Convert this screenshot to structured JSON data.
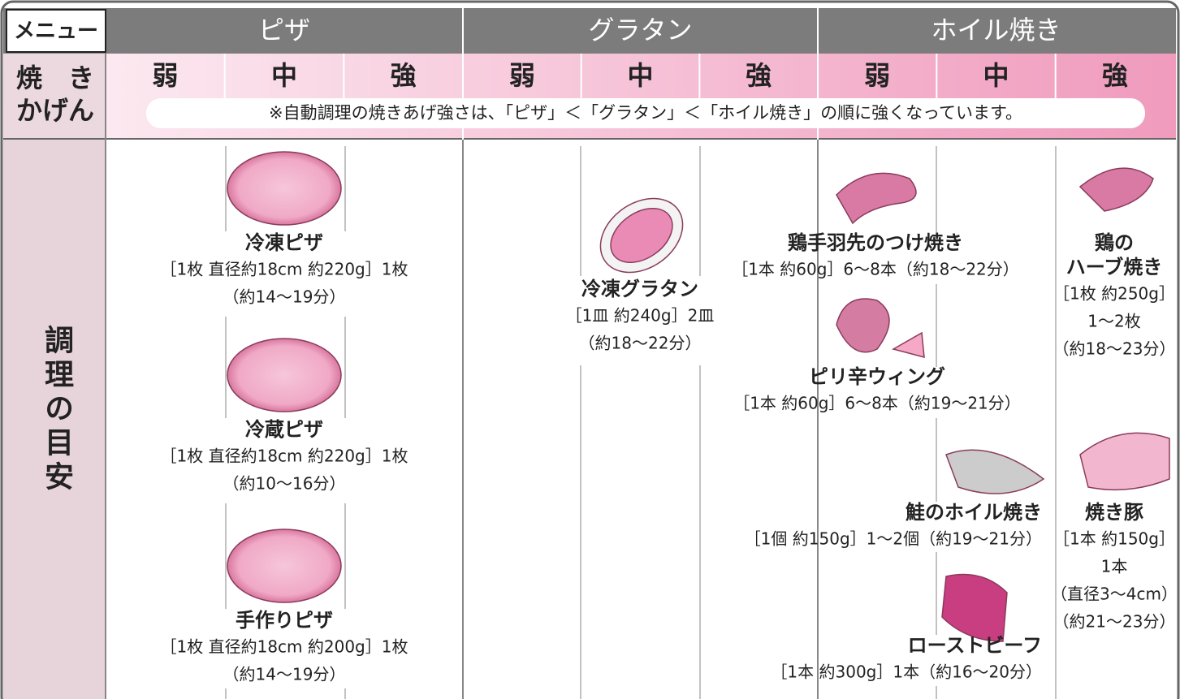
{
  "header": {
    "menu_label": "メニュー",
    "groups": [
      {
        "name": "ピザ",
        "levels": [
          "弱",
          "中",
          "強"
        ]
      },
      {
        "name": "グラタン",
        "levels": [
          "弱",
          "中",
          "強"
        ]
      },
      {
        "name": "ホイル焼き",
        "levels": [
          "弱",
          "中",
          "強"
        ]
      }
    ]
  },
  "heat_row": {
    "label_lines": [
      "焼　き",
      "かげん"
    ],
    "note": "※自動調理の焼きあげ強さは、「ピザ」＜「グラタン」＜「ホイル焼き」の順に強くなっています。"
  },
  "guide": {
    "label": "調理の目安",
    "items": [
      {
        "name_lines": [
          "冷凍ピザ"
        ],
        "detail_lines": [
          "［1枚 直径約18cm 約220g］1枚",
          "（約14〜19分）"
        ]
      },
      {
        "name_lines": [
          "冷蔵ピザ"
        ],
        "detail_lines": [
          "［1枚 直径約18cm 約220g］1枚",
          "（約10〜16分）"
        ]
      },
      {
        "name_lines": [
          "手作りピザ"
        ],
        "detail_lines": [
          "［1枚 直径約18cm 約200g］1枚",
          "（約14〜19分）"
        ]
      },
      {
        "name_lines": [
          "冷凍グラタン"
        ],
        "detail_lines": [
          "［1皿 約240g］2皿",
          "（約18〜22分）"
        ]
      },
      {
        "name_lines": [
          "鶏手羽先のつけ焼き"
        ],
        "detail_lines": [
          "［1本 約60g］6〜8本（約18〜22分）"
        ]
      },
      {
        "name_lines": [
          "ピリ辛ウィング"
        ],
        "detail_lines": [
          "［1本 約60g］6〜8本（約19〜21分）"
        ]
      },
      {
        "name_lines": [
          "鮭のホイル焼き"
        ],
        "detail_lines": [
          "［1個 約150g］1〜2個（約19〜21分）"
        ]
      },
      {
        "name_lines": [
          "ローストビーフ"
        ],
        "detail_lines": [
          "［1本 約300g］1本（約16〜20分）"
        ]
      },
      {
        "name_lines": [
          "鶏の",
          "ハーブ焼き"
        ],
        "detail_lines": [
          "［1枚 約250g］",
          "1〜2枚",
          "（約18〜23分）"
        ]
      },
      {
        "name_lines": [
          "焼き豚"
        ],
        "detail_lines": [
          "［1本 約150g］",
          "1本",
          "（直径3〜4cm）",
          "（約21〜23分）"
        ]
      }
    ]
  }
}
